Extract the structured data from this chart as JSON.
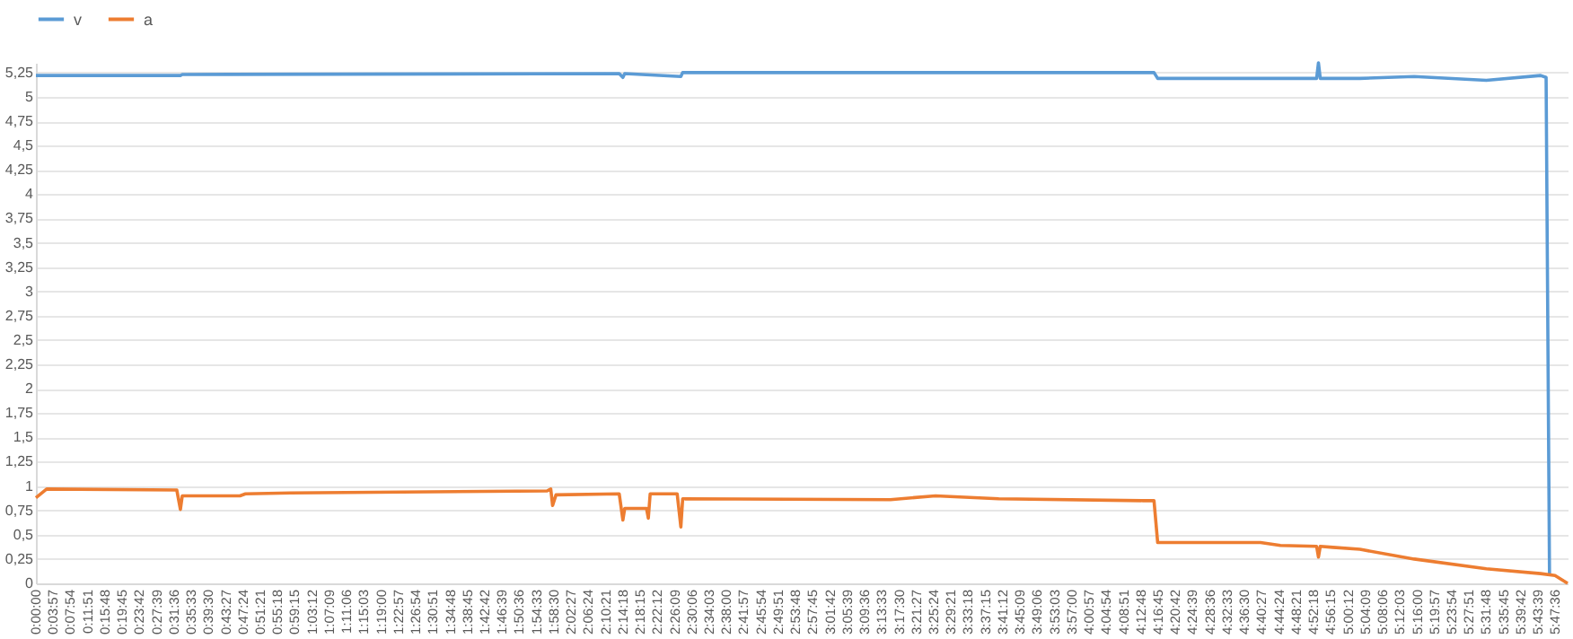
{
  "chart_data": {
    "type": "line",
    "legend": "top",
    "grid": "y",
    "marker": "none",
    "line_style": "solid",
    "xlim": [
      0,
      5.84
    ],
    "ylim": [
      0,
      5.35
    ],
    "xticks": [
      {
        "value": 0,
        "label": "0:00:00"
      },
      {
        "value": 0.0658,
        "label": "0:03:57"
      },
      {
        "value": 0.1317,
        "label": "0:07:54"
      },
      {
        "value": 0.1975,
        "label": "0:11:51"
      },
      {
        "value": 0.2633,
        "label": "0:15:48"
      },
      {
        "value": 0.3292,
        "label": "0:19:45"
      },
      {
        "value": 0.395,
        "label": "0:23:42"
      },
      {
        "value": 0.4608,
        "label": "0:27:39"
      },
      {
        "value": 0.5267,
        "label": "0:31:36"
      },
      {
        "value": 0.5925,
        "label": "0:35:33"
      },
      {
        "value": 0.6583,
        "label": "0:39:30"
      },
      {
        "value": 0.7242,
        "label": "0:43:27"
      },
      {
        "value": 0.79,
        "label": "0:47:24"
      },
      {
        "value": 0.8558,
        "label": "0:51:21"
      },
      {
        "value": 0.9217,
        "label": "0:55:18"
      },
      {
        "value": 0.9875,
        "label": "0:59:15"
      },
      {
        "value": 1.0533,
        "label": "1:03:12"
      },
      {
        "value": 1.1192,
        "label": "1:07:09"
      },
      {
        "value": 1.185,
        "label": "1:11:06"
      },
      {
        "value": 1.2508,
        "label": "1:15:03"
      },
      {
        "value": 1.3167,
        "label": "1:19:00"
      },
      {
        "value": 1.3825,
        "label": "1:22:57"
      },
      {
        "value": 1.4483,
        "label": "1:26:54"
      },
      {
        "value": 1.5142,
        "label": "1:30:51"
      },
      {
        "value": 1.58,
        "label": "1:34:48"
      },
      {
        "value": 1.6458,
        "label": "1:38:45"
      },
      {
        "value": 1.7117,
        "label": "1:42:42"
      },
      {
        "value": 1.7775,
        "label": "1:46:39"
      },
      {
        "value": 1.8433,
        "label": "1:50:36"
      },
      {
        "value": 1.9092,
        "label": "1:54:33"
      },
      {
        "value": 1.975,
        "label": "1:58:30"
      },
      {
        "value": 2.0408,
        "label": "2:02:27"
      },
      {
        "value": 2.1067,
        "label": "2:06:24"
      },
      {
        "value": 2.1725,
        "label": "2:10:21"
      },
      {
        "value": 2.2383,
        "label": "2:14:18"
      },
      {
        "value": 2.3042,
        "label": "2:18:15"
      },
      {
        "value": 2.37,
        "label": "2:22:12"
      },
      {
        "value": 2.4358,
        "label": "2:26:09"
      },
      {
        "value": 2.5017,
        "label": "2:30:06"
      },
      {
        "value": 2.5675,
        "label": "2:34:03"
      },
      {
        "value": 2.6333,
        "label": "2:38:00"
      },
      {
        "value": 2.6992,
        "label": "2:41:57"
      },
      {
        "value": 2.765,
        "label": "2:45:54"
      },
      {
        "value": 2.8308,
        "label": "2:49:51"
      },
      {
        "value": 2.8967,
        "label": "2:53:48"
      },
      {
        "value": 2.9625,
        "label": "2:57:45"
      },
      {
        "value": 3.0283,
        "label": "3:01:42"
      },
      {
        "value": 3.0942,
        "label": "3:05:39"
      },
      {
        "value": 3.16,
        "label": "3:09:36"
      },
      {
        "value": 3.2258,
        "label": "3:13:33"
      },
      {
        "value": 3.2917,
        "label": "3:17:30"
      },
      {
        "value": 3.3575,
        "label": "3:21:27"
      },
      {
        "value": 3.4233,
        "label": "3:25:24"
      },
      {
        "value": 3.4892,
        "label": "3:29:21"
      },
      {
        "value": 3.555,
        "label": "3:33:18"
      },
      {
        "value": 3.6208,
        "label": "3:37:15"
      },
      {
        "value": 3.6867,
        "label": "3:41:12"
      },
      {
        "value": 3.7525,
        "label": "3:45:09"
      },
      {
        "value": 3.8183,
        "label": "3:49:06"
      },
      {
        "value": 3.8842,
        "label": "3:53:03"
      },
      {
        "value": 3.95,
        "label": "3:57:00"
      },
      {
        "value": 4.0158,
        "label": "4:00:57"
      },
      {
        "value": 4.0817,
        "label": "4:04:54"
      },
      {
        "value": 4.1475,
        "label": "4:08:51"
      },
      {
        "value": 4.2133,
        "label": "4:12:48"
      },
      {
        "value": 4.2792,
        "label": "4:16:45"
      },
      {
        "value": 4.345,
        "label": "4:20:42"
      },
      {
        "value": 4.4108,
        "label": "4:24:39"
      },
      {
        "value": 4.4767,
        "label": "4:28:36"
      },
      {
        "value": 4.5425,
        "label": "4:32:33"
      },
      {
        "value": 4.6083,
        "label": "4:36:30"
      },
      {
        "value": 4.6742,
        "label": "4:40:27"
      },
      {
        "value": 4.74,
        "label": "4:44:24"
      },
      {
        "value": 4.8058,
        "label": "4:48:21"
      },
      {
        "value": 4.8717,
        "label": "4:52:18"
      },
      {
        "value": 4.9375,
        "label": "4:56:15"
      },
      {
        "value": 5.0033,
        "label": "5:00:12"
      },
      {
        "value": 5.0692,
        "label": "5:04:09"
      },
      {
        "value": 5.135,
        "label": "5:08:06"
      },
      {
        "value": 5.2008,
        "label": "5:12:03"
      },
      {
        "value": 5.2667,
        "label": "5:16:00"
      },
      {
        "value": 5.3325,
        "label": "5:19:57"
      },
      {
        "value": 5.3983,
        "label": "5:23:54"
      },
      {
        "value": 5.4642,
        "label": "5:27:51"
      },
      {
        "value": 5.53,
        "label": "5:31:48"
      },
      {
        "value": 5.5958,
        "label": "5:35:45"
      },
      {
        "value": 5.6617,
        "label": "5:39:42"
      },
      {
        "value": 5.7275,
        "label": "5:43:39"
      },
      {
        "value": 5.7933,
        "label": "5:47:36"
      }
    ],
    "yticks": [
      0,
      {
        "value": 0.25,
        "label": "0,25"
      },
      {
        "value": 0.5,
        "label": "0,5"
      },
      {
        "value": 0.75,
        "label": "0,75"
      },
      1,
      {
        "value": 1.25,
        "label": "1,25"
      },
      {
        "value": 1.5,
        "label": "1,5"
      },
      {
        "value": 1.75,
        "label": "1,75"
      },
      2,
      {
        "value": 2.25,
        "label": "2,25"
      },
      {
        "value": 2.5,
        "label": "2,5"
      },
      {
        "value": 2.75,
        "label": "2,75"
      },
      3,
      {
        "value": 3.25,
        "label": "3,25"
      },
      {
        "value": 3.5,
        "label": "3,5"
      },
      {
        "value": 3.75,
        "label": "3,75"
      },
      4,
      {
        "value": 4.25,
        "label": "4,25"
      },
      {
        "value": 4.5,
        "label": "4,5"
      },
      {
        "value": 4.75,
        "label": "4,75"
      },
      5,
      {
        "value": 5.25,
        "label": "5,25"
      }
    ],
    "series": [
      {
        "name": "v",
        "color": "#5b9bd5",
        "x": [
          0,
          0.551,
          0.558,
          2.224,
          2.238,
          2.245,
          2.459,
          2.466,
          4.263,
          4.277,
          4.883,
          4.89,
          4.897,
          5.048,
          5.255,
          5.53,
          5.737,
          5.758,
          5.771
        ],
        "values": [
          5.22,
          5.22,
          5.23,
          5.24,
          5.2,
          5.24,
          5.21,
          5.25,
          5.25,
          5.19,
          5.19,
          5.35,
          5.19,
          5.19,
          5.21,
          5.17,
          5.22,
          5.2,
          0.08
        ]
      },
      {
        "name": "a",
        "color": "#ed7d31",
        "x": [
          0,
          0.041,
          0.537,
          0.551,
          0.558,
          0.778,
          0.799,
          0.971,
          1.949,
          1.963,
          1.97,
          1.983,
          2.224,
          2.238,
          2.245,
          2.328,
          2.335,
          2.342,
          2.445,
          2.459,
          2.466,
          3.258,
          3.43,
          3.671,
          4.222,
          4.263,
          4.277,
          4.669,
          4.745,
          4.883,
          4.89,
          4.897,
          4.945,
          5.048,
          5.255,
          5.53,
          5.737,
          5.792,
          5.84
        ],
        "values": [
          0.88,
          0.97,
          0.96,
          0.76,
          0.9,
          0.9,
          0.92,
          0.93,
          0.95,
          0.97,
          0.8,
          0.91,
          0.92,
          0.65,
          0.77,
          0.77,
          0.67,
          0.92,
          0.92,
          0.58,
          0.87,
          0.86,
          0.9,
          0.87,
          0.85,
          0.85,
          0.42,
          0.42,
          0.39,
          0.38,
          0.27,
          0.38,
          0.37,
          0.35,
          0.25,
          0.15,
          0.1,
          0.08,
          0
        ]
      }
    ]
  }
}
